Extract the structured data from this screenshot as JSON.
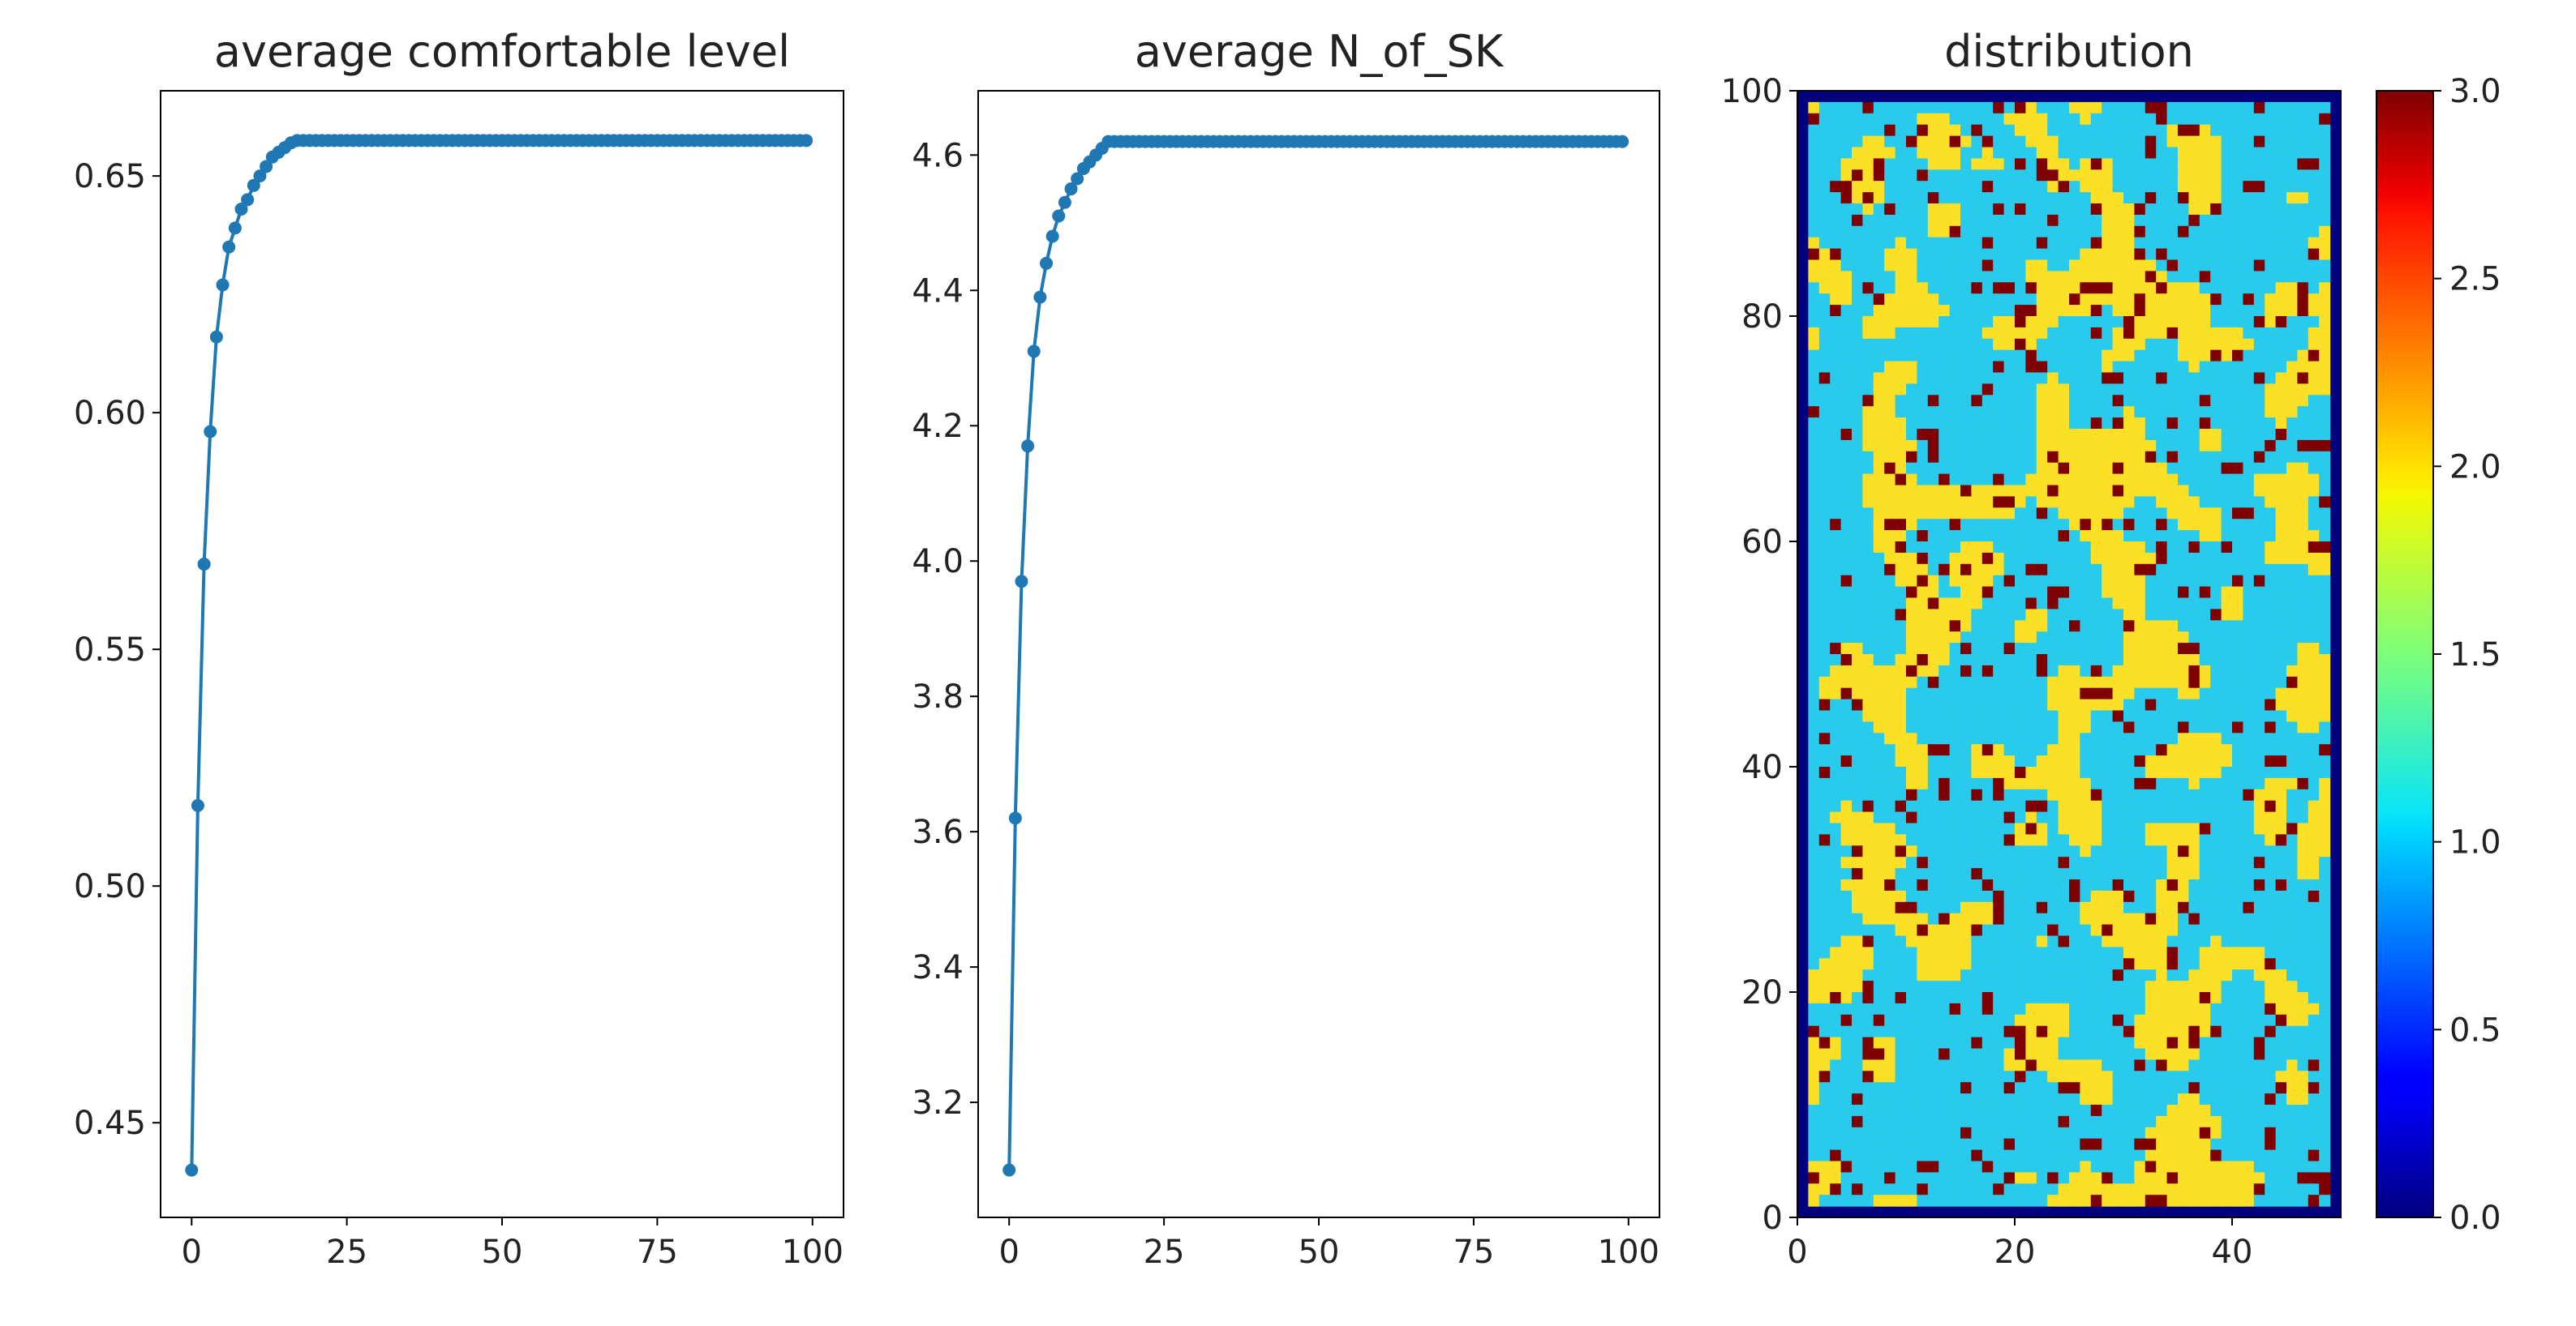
{
  "chart_data": [
    {
      "type": "line",
      "title": "average comfortable level",
      "xlabel": "",
      "ylabel": "",
      "xlim": [
        -5,
        105
      ],
      "ylim": [
        0.43,
        0.668
      ],
      "xticks": [
        0,
        25,
        50,
        75,
        100
      ],
      "yticks": [
        0.45,
        0.5,
        0.55,
        0.6,
        0.65
      ],
      "ytick_labels": [
        "0.45",
        "0.50",
        "0.55",
        "0.60",
        "0.65"
      ],
      "grid": false,
      "series": [
        {
          "marker": "circle",
          "color": "#1f77b4",
          "x": [
            0,
            1,
            2,
            3,
            4,
            5,
            6,
            7,
            8,
            9,
            10,
            11,
            12,
            13,
            14,
            15,
            16,
            17,
            18,
            19,
            20,
            21,
            22,
            23,
            24,
            25,
            26,
            27,
            28,
            29,
            30,
            31,
            32,
            33,
            34,
            35,
            36,
            37,
            38,
            39,
            40,
            41,
            42,
            43,
            44,
            45,
            46,
            47,
            48,
            49,
            50,
            51,
            52,
            53,
            54,
            55,
            56,
            57,
            58,
            59,
            60,
            61,
            62,
            63,
            64,
            65,
            66,
            67,
            68,
            69,
            70,
            71,
            72,
            73,
            74,
            75,
            76,
            77,
            78,
            79,
            80,
            81,
            82,
            83,
            84,
            85,
            86,
            87,
            88,
            89,
            90,
            91,
            92,
            93,
            94,
            95,
            96,
            97,
            98,
            99
          ],
          "y": [
            0.44,
            0.517,
            0.568,
            0.596,
            0.616,
            0.627,
            0.635,
            0.639,
            0.643,
            0.645,
            0.648,
            0.65,
            0.652,
            0.654,
            0.655,
            0.656,
            0.657,
            0.6575,
            0.6575,
            0.6575,
            0.6575,
            0.6575,
            0.6575,
            0.6575,
            0.6575,
            0.6575,
            0.6575,
            0.6575,
            0.6575,
            0.6575,
            0.6575,
            0.6575,
            0.6575,
            0.6575,
            0.6575,
            0.6575,
            0.6575,
            0.6575,
            0.6575,
            0.6575,
            0.6575,
            0.6575,
            0.6575,
            0.6575,
            0.6575,
            0.6575,
            0.6575,
            0.6575,
            0.6575,
            0.6575,
            0.6575,
            0.6575,
            0.6575,
            0.6575,
            0.6575,
            0.6575,
            0.6575,
            0.6575,
            0.6575,
            0.6575,
            0.6575,
            0.6575,
            0.6575,
            0.6575,
            0.6575,
            0.6575,
            0.6575,
            0.6575,
            0.6575,
            0.6575,
            0.6575,
            0.6575,
            0.6575,
            0.6575,
            0.6575,
            0.6575,
            0.6575,
            0.6575,
            0.6575,
            0.6575,
            0.6575,
            0.6575,
            0.6575,
            0.6575,
            0.6575,
            0.6575,
            0.6575,
            0.6575,
            0.6575,
            0.6575,
            0.6575,
            0.6575,
            0.6575,
            0.6575,
            0.6575,
            0.6575,
            0.6575,
            0.6575,
            0.6575,
            0.6575
          ]
        }
      ]
    },
    {
      "type": "line",
      "title": "average N_of_SK",
      "xlabel": "",
      "ylabel": "",
      "xlim": [
        -5,
        105
      ],
      "ylim": [
        3.03,
        4.695
      ],
      "xticks": [
        0,
        25,
        50,
        75,
        100
      ],
      "yticks": [
        3.2,
        3.4,
        3.6,
        3.8,
        4.0,
        4.2,
        4.4,
        4.6
      ],
      "ytick_labels": [
        "3.2",
        "3.4",
        "3.6",
        "3.8",
        "4.0",
        "4.2",
        "4.4",
        "4.6"
      ],
      "grid": false,
      "series": [
        {
          "marker": "circle",
          "color": "#1f77b4",
          "x": [
            0,
            1,
            2,
            3,
            4,
            5,
            6,
            7,
            8,
            9,
            10,
            11,
            12,
            13,
            14,
            15,
            16,
            17,
            18,
            19,
            20,
            21,
            22,
            23,
            24,
            25,
            26,
            27,
            28,
            29,
            30,
            31,
            32,
            33,
            34,
            35,
            36,
            37,
            38,
            39,
            40,
            41,
            42,
            43,
            44,
            45,
            46,
            47,
            48,
            49,
            50,
            51,
            52,
            53,
            54,
            55,
            56,
            57,
            58,
            59,
            60,
            61,
            62,
            63,
            64,
            65,
            66,
            67,
            68,
            69,
            70,
            71,
            72,
            73,
            74,
            75,
            76,
            77,
            78,
            79,
            80,
            81,
            82,
            83,
            84,
            85,
            86,
            87,
            88,
            89,
            90,
            91,
            92,
            93,
            94,
            95,
            96,
            97,
            98,
            99
          ],
          "y": [
            3.1,
            3.62,
            3.97,
            4.17,
            4.31,
            4.39,
            4.44,
            4.48,
            4.51,
            4.53,
            4.55,
            4.565,
            4.58,
            4.59,
            4.6,
            4.61,
            4.62,
            4.62,
            4.62,
            4.62,
            4.62,
            4.62,
            4.62,
            4.62,
            4.62,
            4.62,
            4.62,
            4.62,
            4.62,
            4.62,
            4.62,
            4.62,
            4.62,
            4.62,
            4.62,
            4.62,
            4.62,
            4.62,
            4.62,
            4.62,
            4.62,
            4.62,
            4.62,
            4.62,
            4.62,
            4.62,
            4.62,
            4.62,
            4.62,
            4.62,
            4.62,
            4.62,
            4.62,
            4.62,
            4.62,
            4.62,
            4.62,
            4.62,
            4.62,
            4.62,
            4.62,
            4.62,
            4.62,
            4.62,
            4.62,
            4.62,
            4.62,
            4.62,
            4.62,
            4.62,
            4.62,
            4.62,
            4.62,
            4.62,
            4.62,
            4.62,
            4.62,
            4.62,
            4.62,
            4.62,
            4.62,
            4.62,
            4.62,
            4.62,
            4.62,
            4.62,
            4.62,
            4.62,
            4.62,
            4.62,
            4.62,
            4.62,
            4.62,
            4.62,
            4.62,
            4.62,
            4.62,
            4.62,
            4.62,
            4.62
          ]
        }
      ]
    },
    {
      "type": "heatmap",
      "title": "distribution",
      "xlabel": "",
      "ylabel": "",
      "grid_cols": 50,
      "grid_rows": 100,
      "xlim": [
        0,
        50
      ],
      "ylim": [
        0,
        100
      ],
      "xticks": [
        0,
        20,
        40
      ],
      "yticks": [
        0,
        20,
        40,
        60,
        80,
        100
      ],
      "colormap": "jet",
      "colorbar": {
        "range": [
          0.0,
          3.0
        ],
        "ticks": [
          0.0,
          0.5,
          1.0,
          1.5,
          2.0,
          2.5,
          3.0
        ],
        "tick_labels": [
          "0.0",
          "0.5",
          "1.0",
          "1.5",
          "2.0",
          "2.5",
          "3.0"
        ]
      },
      "value_colors": {
        "0": "#00007f",
        "1": "#29cbed",
        "2": "#fbe025",
        "3": "#7f0000"
      },
      "border_value": 0,
      "interior_values_present": [
        1,
        2,
        3
      ],
      "value_fractions": {
        "1": 0.5,
        "2": 0.42,
        "3": 0.08
      }
    }
  ]
}
